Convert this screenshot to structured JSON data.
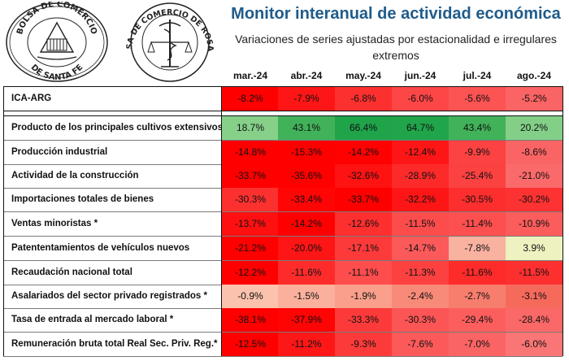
{
  "header": {
    "title": "Monitor interanual de actividad económica",
    "subtitle": "Variaciones de series ajustadas por estacionalidad e irregulares extremos"
  },
  "logos": {
    "left_seal_top": "BOLSA DE COMERCIO",
    "left_seal_bottom": "DE SANTA FE",
    "right_seal_text": "BOLSA DE COMERCIO DE ROSARIO"
  },
  "table": {
    "columns": [
      "mar.-24",
      "abr.-24",
      "may.-24",
      "jun.-24",
      "jul.-24",
      "ago.-24"
    ],
    "rows": [
      {
        "label": "ICA-ARG",
        "values": [
          "-8.2%",
          "-7.9%",
          "-6.8%",
          "-6.0%",
          "-5.6%",
          "-5.2%"
        ],
        "colors": [
          "#ff0000",
          "#fe1616",
          "#fd3030",
          "#fd4646",
          "#fc5353",
          "#fb6464"
        ]
      },
      {
        "label": "Producto de los principales cultivos extensivos",
        "values": [
          "18.7%",
          "43.1%",
          "66.4%",
          "64.7%",
          "43.4%",
          "20.2%"
        ],
        "colors": [
          "#86d08a",
          "#41b25a",
          "#1fa44a",
          "#21a54b",
          "#41b25a",
          "#83cf88"
        ]
      },
      {
        "label": "Producción industrial",
        "values": [
          "-14.8%",
          "-15.3%",
          "-14.2%",
          "-12.4%",
          "-9.9%",
          "-8.6%"
        ],
        "colors": [
          "#ff0000",
          "#ff0000",
          "#ff0101",
          "#fe1616",
          "#fc4242",
          "#fb6464"
        ]
      },
      {
        "label": "Actividad de la construcción",
        "values": [
          "-33.7%",
          "-35.6%",
          "-32.6%",
          "-28.9%",
          "-25.4%",
          "-21.0%"
        ],
        "colors": [
          "#ff0000",
          "#ff0000",
          "#fe1212",
          "#fd2a2a",
          "#fc4141",
          "#fb6a6a"
        ]
      },
      {
        "label": "Importaciones totales de bienes",
        "values": [
          "-30.3%",
          "-33.4%",
          "-33.7%",
          "-32.2%",
          "-30.5%",
          "-30.2%"
        ],
        "colors": [
          "#fd3030",
          "#ff0505",
          "#ff0000",
          "#fe1616",
          "#fd2e2e",
          "#fd3232"
        ]
      },
      {
        "label": "Ventas minoristas *",
        "values": [
          "-13.7%",
          "-14.2%",
          "-12.6%",
          "-11.5%",
          "-11.4%",
          "-10.9%"
        ],
        "colors": [
          "#fe1010",
          "#ff0000",
          "#fd2f2f",
          "#fc4c4c",
          "#fc4f4f",
          "#fb5c5c"
        ]
      },
      {
        "label": "Patententamientos de vehículos nuevos",
        "values": [
          "-21.2%",
          "-20.0%",
          "-17.1%",
          "-14.7%",
          "-7.8%",
          "3.9%"
        ],
        "colors": [
          "#ff0000",
          "#fe1515",
          "#fd3a3a",
          "#fc5a5a",
          "#f9b1a0",
          "#eef2c0"
        ]
      },
      {
        "label": "Recaudación nacional total",
        "values": [
          "-12.2%",
          "-11.6%",
          "-11.1%",
          "-11.3%",
          "-11.6%",
          "-11.5%"
        ],
        "colors": [
          "#ff0000",
          "#fe2b2b",
          "#fd4d4d",
          "#fd4141",
          "#fe2b2b",
          "#fe2f2f"
        ]
      },
      {
        "label": "Asalariados del sector privado registrados *",
        "values": [
          "-0.9%",
          "-1.5%",
          "-1.9%",
          "-2.4%",
          "-2.7%",
          "-3.1%"
        ],
        "colors": [
          "#fbc3ad",
          "#fab09c",
          "#f99f8c",
          "#f88a79",
          "#f77d6d",
          "#f66a5c"
        ]
      },
      {
        "label": "Tasa de entrada al mercado laboral *",
        "values": [
          "-38.1%",
          "-37.9%",
          "-33.3%",
          "-30.3%",
          "-29.4%",
          "-28.4%"
        ],
        "colors": [
          "#ff0000",
          "#ff0404",
          "#fd3a3a",
          "#fc5555",
          "#fc5e5e",
          "#fb6868"
        ]
      },
      {
        "label": "Remuneración bruta total Real Sec. Priv. Reg.*",
        "values": [
          "-12.5%",
          "-11.2%",
          "-9.3%",
          "-7.6%",
          "-7.0%",
          "-6.0%"
        ],
        "colors": [
          "#ff0000",
          "#fe1717",
          "#fd3a3a",
          "#fc5a5a",
          "#fb6464",
          "#fa7575"
        ]
      }
    ]
  }
}
